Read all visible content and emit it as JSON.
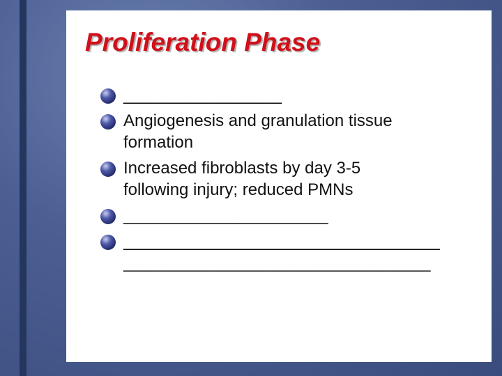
{
  "title": "Proliferation Phase",
  "bullets": [
    {
      "lines": [
        "_________________"
      ]
    },
    {
      "lines": [
        "Angiogenesis and granulation tissue",
        "formation"
      ]
    },
    {
      "lines": [
        "Increased fibroblasts by day 3-5",
        "following injury; reduced PMNs"
      ]
    },
    {
      "lines": [
        "______________________"
      ]
    },
    {
      "lines": [
        "__________________________________",
        "_________________________________"
      ]
    }
  ]
}
